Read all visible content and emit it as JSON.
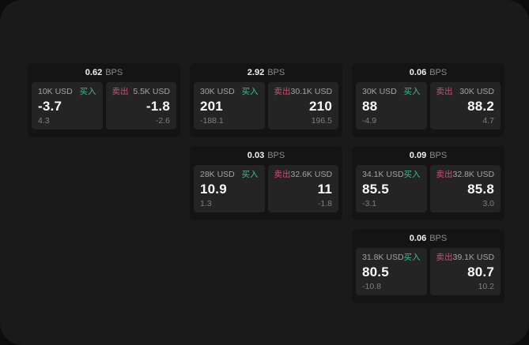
{
  "theme": {
    "outer_background": "#0c0c0c",
    "page_background": "#1a1a1a",
    "card_background": "#141414",
    "cell_background": "#242424",
    "buy_color": "#3cbd8c",
    "sell_color": "#cd5070",
    "primary_text": "#fafafa",
    "muted_text": "#8b8b8b"
  },
  "cards": [
    {
      "spread": "0.62",
      "spread_unit": "BPS",
      "buy": {
        "size": "10K USD",
        "side_label": "买入",
        "price": "-3.7",
        "delta": "4.3"
      },
      "sell": {
        "size": "5.5K USD",
        "side_label": "卖出",
        "price": "-1.8",
        "delta": "-2.6"
      }
    },
    {
      "spread": "2.92",
      "spread_unit": "BPS",
      "buy": {
        "size": "30K USD",
        "side_label": "买入",
        "price": "201",
        "delta": "-188.1"
      },
      "sell": {
        "size": "30.1K USD",
        "side_label": "卖出",
        "price": "210",
        "delta": "196.5"
      }
    },
    {
      "spread": "0.06",
      "spread_unit": "BPS",
      "buy": {
        "size": "30K USD",
        "side_label": "买入",
        "price": "88",
        "delta": "-4.9"
      },
      "sell": {
        "size": "30K USD",
        "side_label": "卖出",
        "price": "88.2",
        "delta": "4.7"
      }
    },
    {
      "spread": "0.03",
      "spread_unit": "BPS",
      "buy": {
        "size": "28K USD",
        "side_label": "买入",
        "price": "10.9",
        "delta": "1.3"
      },
      "sell": {
        "size": "32.6K USD",
        "side_label": "卖出",
        "price": "11",
        "delta": "-1.8"
      }
    },
    {
      "spread": "0.09",
      "spread_unit": "BPS",
      "buy": {
        "size": "34.1K USD",
        "side_label": "买入",
        "price": "85.5",
        "delta": "-3.1"
      },
      "sell": {
        "size": "32.8K USD",
        "side_label": "卖出",
        "price": "85.8",
        "delta": "3.0"
      }
    },
    {
      "spread": "0.06",
      "spread_unit": "BPS",
      "buy": {
        "size": "31.8K USD",
        "side_label": "买入",
        "price": "80.5",
        "delta": "-10.8"
      },
      "sell": {
        "size": "39.1K USD",
        "side_label": "卖出",
        "price": "80.7",
        "delta": "10.2"
      }
    }
  ]
}
